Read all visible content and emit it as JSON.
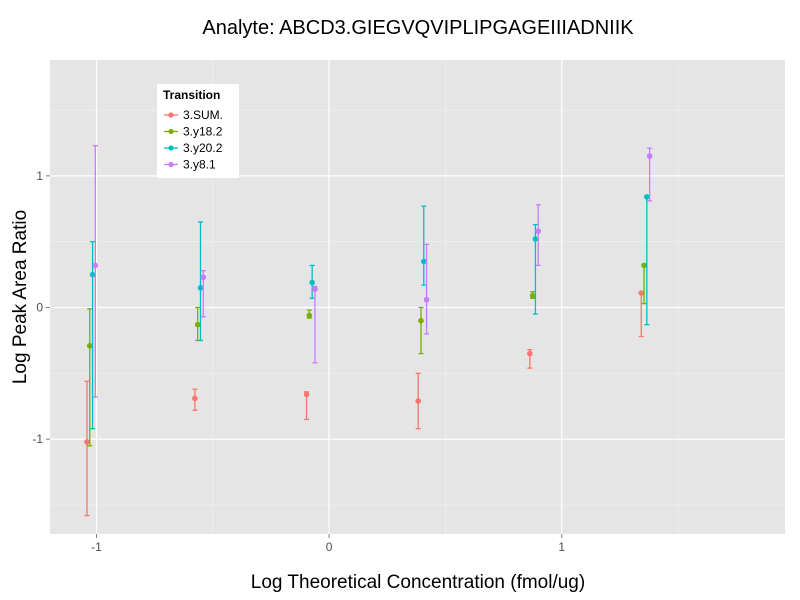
{
  "chart_data": {
    "type": "scatter",
    "title": "Analyte: ABCD3.GIEGVQVIPLIPGAGEIIIADNIIK",
    "xlabel": "Log Theoretical Concentration (fmol/ug)",
    "ylabel": "Log Peak Area Ratio",
    "xlim": [
      -1.2,
      1.96
    ],
    "ylim": [
      -1.72,
      1.88
    ],
    "xticks": [
      -1,
      0,
      1
    ],
    "xtick_labels": [
      "-1",
      "0",
      "1"
    ],
    "yticks": [
      -1,
      0,
      1
    ],
    "ytick_labels": [
      "-1",
      "0",
      "1"
    ],
    "grid": true,
    "legend": {
      "title": "Transition",
      "placement": "top-left (inside)"
    },
    "series": [
      {
        "name": "3.SUM.",
        "color": "#F8766D",
        "x": [
          -1.041,
          -0.577,
          -0.097,
          0.383,
          0.863,
          1.342
        ],
        "y": [
          -1.02,
          -0.69,
          -0.66,
          -0.71,
          -0.35,
          0.11
        ],
        "y_low": [
          -1.58,
          -0.78,
          -0.85,
          -0.92,
          -0.46,
          -0.22
        ],
        "y_high": [
          -0.56,
          -0.62,
          -0.64,
          -0.5,
          -0.32,
          0.12
        ]
      },
      {
        "name": "3.y18.2",
        "color": "#7CAE00",
        "x": [
          -1.029,
          -0.565,
          -0.085,
          0.395,
          0.875,
          1.354
        ],
        "y": [
          -0.29,
          -0.13,
          -0.06,
          -0.1,
          0.09,
          0.32
        ],
        "y_low": [
          -1.05,
          -0.25,
          -0.08,
          -0.35,
          0.07,
          0.03
        ],
        "y_high": [
          -0.01,
          0.0,
          -0.02,
          0.0,
          0.12,
          0.33
        ]
      },
      {
        "name": "3.y20.2",
        "color": "#00BFC4",
        "x": [
          -1.017,
          -0.553,
          -0.073,
          0.407,
          0.887,
          1.366
        ],
        "y": [
          0.25,
          0.15,
          0.19,
          0.35,
          0.52,
          0.84
        ],
        "y_low": [
          -0.92,
          -0.25,
          0.07,
          0.17,
          -0.05,
          -0.13
        ],
        "y_high": [
          0.5,
          0.65,
          0.32,
          0.77,
          0.63,
          0.85
        ]
      },
      {
        "name": "3.y8.1",
        "color": "#C77CFF",
        "x": [
          -1.005,
          -0.541,
          -0.061,
          0.419,
          0.899,
          1.378
        ],
        "y": [
          0.32,
          0.23,
          0.14,
          0.06,
          0.58,
          1.15
        ],
        "y_low": [
          -0.68,
          -0.07,
          -0.42,
          -0.2,
          0.32,
          0.81
        ],
        "y_high": [
          1.23,
          0.28,
          0.16,
          0.48,
          0.78,
          1.21
        ]
      }
    ]
  }
}
